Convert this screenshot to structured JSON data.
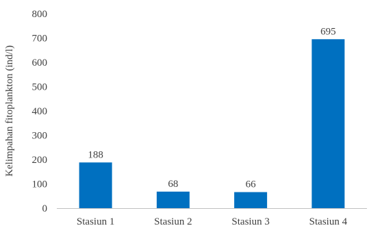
{
  "chart_data": {
    "type": "bar",
    "categories": [
      "Stasiun 1",
      "Stasiun 2",
      "Stasiun 3",
      "Stasiun 4"
    ],
    "values": [
      188,
      68,
      66,
      695
    ],
    "data_labels": [
      "188",
      "68",
      "66",
      "695"
    ],
    "title": "",
    "xlabel": "",
    "ylabel": "Kelimpahan  fitoplankton (ind/l)",
    "ylim": [
      0,
      800
    ],
    "yticks": [
      0,
      100,
      200,
      300,
      400,
      500,
      600,
      700,
      800
    ],
    "grid": false,
    "legend": "none",
    "bar_color": "#0070C0",
    "axis_color": "#BFBFBF"
  }
}
